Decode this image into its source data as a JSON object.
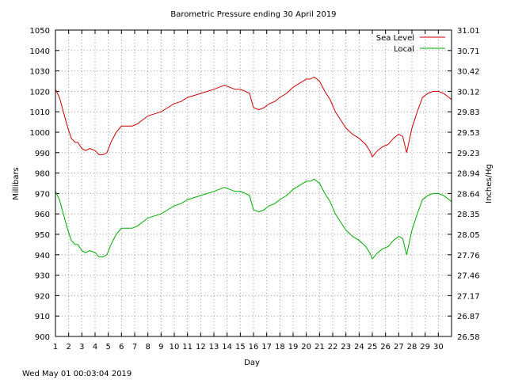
{
  "chart_data": {
    "type": "line",
    "title": "Barometric Pressure ending 30 April 2019",
    "xlabel": "Day",
    "ylabel": "Millibars",
    "y2label": "Inches/Hg",
    "footer": "Wed May 01 00:03:04 2019",
    "xlim": [
      1,
      31
    ],
    "ylim": [
      900,
      1050
    ],
    "grid": true,
    "legend_position": "top-right",
    "x_ticks": [
      "1",
      "2",
      "3",
      "4",
      "5",
      "6",
      "7",
      "8",
      "9",
      "10",
      "11",
      "12",
      "13",
      "14",
      "15",
      "16",
      "17",
      "18",
      "19",
      "20",
      "21",
      "22",
      "23",
      "24",
      "25",
      "26",
      "27",
      "28",
      "29",
      "30"
    ],
    "y_ticks": [
      "900",
      "910",
      "920",
      "930",
      "940",
      "950",
      "960",
      "970",
      "980",
      "990",
      "1000",
      "1010",
      "1020",
      "1030",
      "1040",
      "1050"
    ],
    "y2_ticks": [
      "26.58",
      "26.87",
      "27.17",
      "27.46",
      "27.76",
      "28.05",
      "28.35",
      "28.64",
      "28.94",
      "29.23",
      "29.53",
      "29.83",
      "30.12",
      "30.42",
      "30.71",
      "31.01"
    ],
    "series": [
      {
        "name": "Sea Level",
        "color": "#cc0000",
        "x": [
          1.0,
          1.3,
          1.6,
          1.9,
          2.2,
          2.5,
          2.7,
          3.0,
          3.3,
          3.6,
          4.0,
          4.3,
          4.6,
          4.9,
          5.2,
          5.6,
          6.0,
          6.4,
          6.8,
          7.2,
          7.6,
          8.0,
          8.5,
          9.0,
          9.5,
          10.0,
          10.5,
          11.0,
          11.5,
          12.0,
          12.5,
          13.0,
          13.4,
          13.8,
          14.2,
          14.6,
          15.0,
          15.4,
          15.7,
          16.0,
          16.4,
          16.8,
          17.2,
          17.6,
          18.0,
          18.5,
          19.0,
          19.5,
          20.0,
          20.3,
          20.6,
          21.0,
          21.4,
          21.8,
          22.2,
          22.6,
          23.0,
          23.5,
          24.0,
          24.5,
          24.8,
          25.0,
          25.4,
          25.8,
          26.2,
          26.6,
          27.0,
          27.3,
          27.6,
          28.0,
          28.4,
          28.8,
          29.2,
          29.6,
          30.0,
          30.4,
          30.8,
          31.0
        ],
        "values": [
          1021,
          1017,
          1010,
          1003,
          997,
          995,
          995,
          992,
          991,
          992,
          991,
          989,
          989,
          990,
          995,
          1000,
          1003,
          1003,
          1003,
          1004,
          1006,
          1008,
          1009,
          1010,
          1012,
          1014,
          1015,
          1017,
          1018,
          1019,
          1020,
          1021,
          1022,
          1023,
          1022,
          1021,
          1021,
          1020,
          1019,
          1012,
          1011,
          1012,
          1014,
          1015,
          1017,
          1019,
          1022,
          1024,
          1026,
          1026,
          1027,
          1025,
          1020,
          1016,
          1010,
          1006,
          1002,
          999,
          997,
          994,
          991,
          988,
          991,
          993,
          994,
          997,
          999,
          998,
          990,
          1002,
          1010,
          1017,
          1019,
          1020,
          1020,
          1019,
          1017,
          1016
        ]
      },
      {
        "name": "Local",
        "color": "#00aa00",
        "x": [
          1.0,
          1.3,
          1.6,
          1.9,
          2.2,
          2.5,
          2.7,
          3.0,
          3.3,
          3.6,
          4.0,
          4.3,
          4.6,
          4.9,
          5.2,
          5.6,
          6.0,
          6.4,
          6.8,
          7.2,
          7.6,
          8.0,
          8.5,
          9.0,
          9.5,
          10.0,
          10.5,
          11.0,
          11.5,
          12.0,
          12.5,
          13.0,
          13.4,
          13.8,
          14.2,
          14.6,
          15.0,
          15.4,
          15.7,
          16.0,
          16.4,
          16.8,
          17.2,
          17.6,
          18.0,
          18.5,
          19.0,
          19.5,
          20.0,
          20.3,
          20.6,
          21.0,
          21.4,
          21.8,
          22.2,
          22.6,
          23.0,
          23.5,
          24.0,
          24.5,
          24.8,
          25.0,
          25.4,
          25.8,
          26.2,
          26.6,
          27.0,
          27.3,
          27.6,
          28.0,
          28.4,
          28.8,
          29.2,
          29.6,
          30.0,
          30.4,
          30.8,
          31.0
        ],
        "values": [
          971,
          967,
          960,
          953,
          947,
          945,
          945,
          942,
          941,
          942,
          941,
          939,
          939,
          940,
          945,
          950,
          953,
          953,
          953,
          954,
          956,
          958,
          959,
          960,
          962,
          964,
          965,
          967,
          968,
          969,
          970,
          971,
          972,
          973,
          972,
          971,
          971,
          970,
          969,
          962,
          961,
          962,
          964,
          965,
          967,
          969,
          972,
          974,
          976,
          976,
          977,
          975,
          970,
          966,
          960,
          956,
          952,
          949,
          947,
          944,
          941,
          938,
          941,
          943,
          944,
          947,
          949,
          948,
          940,
          952,
          960,
          967,
          969,
          970,
          970,
          969,
          967,
          966
        ]
      }
    ]
  }
}
